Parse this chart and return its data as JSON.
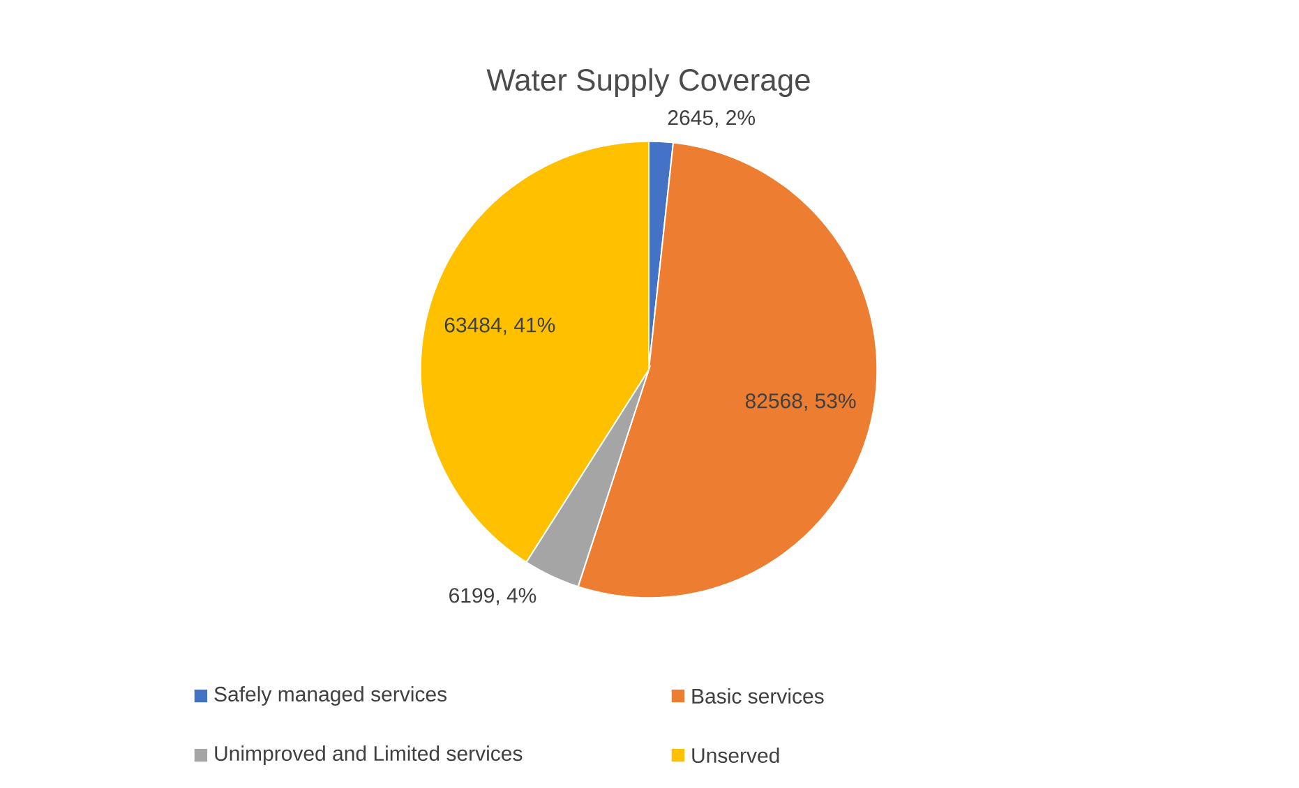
{
  "chart_data": {
    "type": "pie",
    "title": "Water Supply Coverage",
    "categories": [
      "Safely managed services",
      "Basic services",
      "Unimproved and Limited services",
      "Unserved"
    ],
    "values": [
      2645,
      82568,
      6199,
      63484
    ],
    "colors": [
      "#4472c4",
      "#ed7d31",
      "#a5a5a5",
      "#ffc000"
    ],
    "value_labels": [
      "2645, 2%",
      "82568, 53%",
      "6199, 4%",
      "63484, 41%"
    ],
    "legend": "bottom"
  }
}
